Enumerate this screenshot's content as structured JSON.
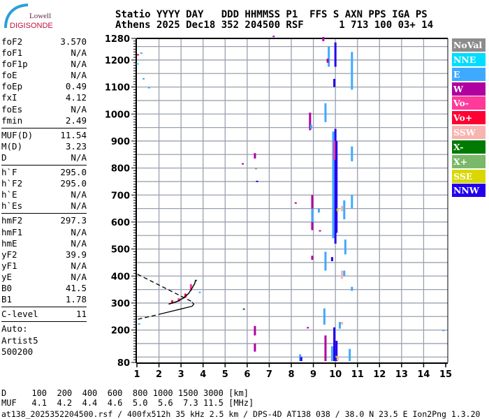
{
  "logo": {
    "line1": "Lowell",
    "line2": "DIGISONDE"
  },
  "header": {
    "line1": "Statio YYYY DAY   DDD HHMMSS P1  FFS S AXN PPS IGA PS",
    "line2": "Athens 2025 Dec18 352 204500 RSF      1 713 100 03+ 14"
  },
  "panel": {
    "groups": [
      [
        [
          "foF2",
          "3.570"
        ],
        [
          "foF1",
          "N/A"
        ],
        [
          "foF1p",
          "N/A"
        ],
        [
          "foE",
          "N/A"
        ],
        [
          "foEp",
          "0.49"
        ],
        [
          "fxI",
          "4.12"
        ],
        [
          "foEs",
          "N/A"
        ],
        [
          "fmin",
          "2.49"
        ]
      ],
      [
        [
          "MUF(D)",
          "11.54"
        ],
        [
          "M(D)",
          "3.23"
        ],
        [
          "D",
          "N/A"
        ]
      ],
      [
        [
          "h`F",
          "295.0"
        ],
        [
          "h`F2",
          "295.0"
        ],
        [
          "h`E",
          "N/A"
        ],
        [
          "h`Es",
          "N/A"
        ]
      ],
      [
        [
          "hmF2",
          "297.3"
        ],
        [
          "hmF1",
          "N/A"
        ],
        [
          "hmE",
          "N/A"
        ],
        [
          "yF2",
          "39.9"
        ],
        [
          "yF1",
          "N/A"
        ],
        [
          "yE",
          "N/A"
        ],
        [
          "B0",
          "41.5"
        ],
        [
          "B1",
          "1.78"
        ]
      ],
      [
        [
          "C-level",
          "11"
        ]
      ]
    ],
    "auto": [
      "Auto:",
      "Artist5",
      "500200"
    ]
  },
  "legend": [
    {
      "label": "NoVal",
      "color": "#8c8c8c"
    },
    {
      "label": "NNE",
      "color": "#00ddff"
    },
    {
      "label": "E",
      "color": "#3fa9ff"
    },
    {
      "label": "W",
      "color": "#b000a0"
    },
    {
      "label": "Vo-",
      "color": "#ff3a9a"
    },
    {
      "label": "Vo+",
      "color": "#ff0033"
    },
    {
      "label": "SSW",
      "color": "#f8b4b0"
    },
    {
      "label": "X-",
      "color": "#007a00"
    },
    {
      "label": "X+",
      "color": "#7ab86a"
    },
    {
      "label": "SSE",
      "color": "#d8d800"
    },
    {
      "label": "NNW",
      "color": "#2200ee"
    }
  ],
  "muf_table": {
    "line1": "D     100  200  400  600  800 1000 1500 3000 [km]",
    "line2": "MUF   4.1  4.2  4.4  4.6  5.0  5.6  7.3 11.5 [MHz]"
  },
  "footer": "at138_2025352204500.rsf / 400fx512h 35 kHz 2.5 km / DPS-4D AT138 038 / 38.0 N 23.5 E Ion2Png 1.3.20",
  "chart_data": {
    "type": "scatter",
    "xlabel": "",
    "ylabel": "",
    "xlim": [
      1,
      15
    ],
    "ylim": [
      80,
      1280
    ],
    "x_ticks": [
      1,
      2,
      3,
      4,
      5,
      6,
      7,
      8,
      9,
      10,
      11,
      12,
      13,
      14,
      15
    ],
    "y_ticks": [
      80,
      200,
      300,
      400,
      500,
      600,
      700,
      800,
      900,
      1000,
      1100,
      1200,
      1280
    ],
    "grid": true,
    "legend_placement": "right",
    "profile_dashed_upper": [
      [
        1.02,
        407
      ],
      [
        3.55,
        303
      ]
    ],
    "profile_lower": [
      [
        1.05,
        240
      ],
      [
        2.0,
        258
      ],
      [
        3.0,
        278
      ],
      [
        3.5,
        288
      ],
      [
        3.58,
        296
      ],
      [
        3.5,
        303
      ]
    ],
    "trace_F2": [
      [
        2.44,
        296
      ],
      [
        2.8,
        305
      ],
      [
        3.1,
        318
      ],
      [
        3.34,
        335
      ],
      [
        3.5,
        355
      ],
      [
        3.62,
        372
      ],
      [
        3.66,
        385
      ]
    ],
    "echoes": [
      {
        "pol": "Vo+",
        "f": 2.6,
        "h1": 298,
        "h2": 310
      },
      {
        "pol": "Vo-",
        "f": 2.9,
        "h1": 305,
        "h2": 318
      },
      {
        "pol": "Vo+",
        "f": 3.2,
        "h1": 320,
        "h2": 335
      },
      {
        "pol": "Vo-",
        "f": 3.45,
        "h1": 345,
        "h2": 370
      },
      {
        "pol": "X-",
        "f": 3.68,
        "h1": 384,
        "h2": 386
      },
      {
        "pol": "E",
        "f": 3.85,
        "h1": 340,
        "h2": 342
      },
      {
        "pol": "E",
        "f": 1.1,
        "h1": 220,
        "h2": 225
      },
      {
        "pol": "E",
        "f": 1.3,
        "h1": 1130,
        "h2": 1133
      },
      {
        "pol": "E",
        "f": 1.55,
        "h1": 1097,
        "h2": 1100
      },
      {
        "pol": "Vo+",
        "f": 1.05,
        "h1": 1218,
        "h2": 1222
      },
      {
        "pol": "NNE",
        "f": 1.03,
        "h1": 1185,
        "h2": 1188
      },
      {
        "pol": "E",
        "f": 1.2,
        "h1": 1225,
        "h2": 1228
      },
      {
        "pol": "W",
        "f": 5.8,
        "h1": 815,
        "h2": 818
      },
      {
        "pol": "W",
        "f": 6.35,
        "h1": 835,
        "h2": 855
      },
      {
        "pol": "X+",
        "f": 6.4,
        "h1": 795,
        "h2": 800
      },
      {
        "pol": "NNW",
        "f": 6.45,
        "h1": 750,
        "h2": 753
      },
      {
        "pol": "W",
        "f": 6.35,
        "h1": 120,
        "h2": 150
      },
      {
        "pol": "W",
        "f": 6.35,
        "h1": 180,
        "h2": 215
      },
      {
        "pol": "X-",
        "f": 5.85,
        "h1": 275,
        "h2": 280
      },
      {
        "pol": "W",
        "f": 7.2,
        "h1": 1290,
        "h2": 1290
      },
      {
        "pol": "W",
        "f": 8.2,
        "h1": 670,
        "h2": 673
      },
      {
        "pol": "E",
        "f": 8.4,
        "h1": 85,
        "h2": 110
      },
      {
        "pol": "NNW",
        "f": 8.45,
        "h1": 85,
        "h2": 100
      },
      {
        "pol": "W",
        "f": 8.85,
        "h1": 940,
        "h2": 1005
      },
      {
        "pol": "E",
        "f": 8.9,
        "h1": 945,
        "h2": 960
      },
      {
        "pol": "W",
        "f": 8.95,
        "h1": 570,
        "h2": 700
      },
      {
        "pol": "E",
        "f": 8.95,
        "h1": 600,
        "h2": 650
      },
      {
        "pol": "W",
        "f": 8.95,
        "h1": 460,
        "h2": 475
      },
      {
        "pol": "W",
        "f": 8.75,
        "h1": 208,
        "h2": 211
      },
      {
        "pol": "W",
        "f": 9.3,
        "h1": 565,
        "h2": 570
      },
      {
        "pol": "E",
        "f": 9.25,
        "h1": 635,
        "h2": 650
      },
      {
        "pol": "E",
        "f": 9.55,
        "h1": 970,
        "h2": 1040
      },
      {
        "pol": "E",
        "f": 9.55,
        "h1": 420,
        "h2": 490
      },
      {
        "pol": "E",
        "f": 9.5,
        "h1": 220,
        "h2": 280
      },
      {
        "pol": "W",
        "f": 9.55,
        "h1": 85,
        "h2": 180
      },
      {
        "pol": "W",
        "f": 9.45,
        "h1": 1270,
        "h2": 1285
      },
      {
        "pol": "E",
        "f": 9.7,
        "h1": 1175,
        "h2": 1250
      },
      {
        "pol": "W",
        "f": 9.65,
        "h1": 1190,
        "h2": 1205
      },
      {
        "pol": "NNW",
        "f": 10.0,
        "h1": 1175,
        "h2": 1265
      },
      {
        "pol": "NNW",
        "f": 9.95,
        "h1": 1100,
        "h2": 1130
      },
      {
        "pol": "E",
        "f": 9.9,
        "h1": 540,
        "h2": 935
      },
      {
        "pol": "NNW",
        "f": 10.0,
        "h1": 520,
        "h2": 945
      },
      {
        "pol": "NNW",
        "f": 10.05,
        "h1": 560,
        "h2": 900
      },
      {
        "pol": "Vo-",
        "f": 9.95,
        "h1": 830,
        "h2": 900
      },
      {
        "pol": "SSE",
        "f": 10.1,
        "h1": 640,
        "h2": 650
      },
      {
        "pol": "NNW",
        "f": 9.85,
        "h1": 455,
        "h2": 470
      },
      {
        "pol": "SSW",
        "f": 10.3,
        "h1": 640,
        "h2": 660
      },
      {
        "pol": "SSW",
        "f": 10.3,
        "h1": 390,
        "h2": 420
      },
      {
        "pol": "SSW",
        "f": 10.3,
        "h1": 220,
        "h2": 230
      },
      {
        "pol": "E",
        "f": 10.4,
        "h1": 610,
        "h2": 680
      },
      {
        "pol": "E",
        "f": 10.45,
        "h1": 480,
        "h2": 535
      },
      {
        "pol": "E",
        "f": 10.4,
        "h1": 400,
        "h2": 420
      },
      {
        "pol": "E",
        "f": 10.75,
        "h1": 825,
        "h2": 880
      },
      {
        "pol": "E",
        "f": 10.75,
        "h1": 650,
        "h2": 700
      },
      {
        "pol": "E",
        "f": 10.75,
        "h1": 1090,
        "h2": 1230
      },
      {
        "pol": "E",
        "f": 10.75,
        "h1": 345,
        "h2": 360
      },
      {
        "pol": "E",
        "f": 10.2,
        "h1": 205,
        "h2": 230
      },
      {
        "pol": "E",
        "f": 10.65,
        "h1": 85,
        "h2": 130
      },
      {
        "pol": "NNW",
        "f": 9.95,
        "h1": 85,
        "h2": 210
      },
      {
        "pol": "NNW",
        "f": 10.05,
        "h1": 85,
        "h2": 160
      },
      {
        "pol": "E",
        "f": 9.85,
        "h1": 85,
        "h2": 140
      },
      {
        "pol": "SSW",
        "f": 10.1,
        "h1": 88,
        "h2": 100
      },
      {
        "pol": "SSE",
        "f": 10.05,
        "h1": 100,
        "h2": 104
      },
      {
        "pol": "E",
        "f": 14.9,
        "h1": 200,
        "h2": 201
      }
    ]
  }
}
